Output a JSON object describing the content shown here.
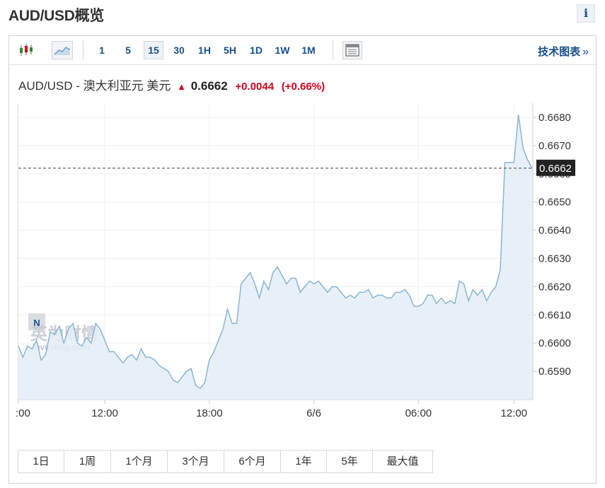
{
  "page": {
    "title": "AUD/USD概览",
    "info_label": "i"
  },
  "toolbar": {
    "icons": [
      "candlestick-icon",
      "area-chart-icon"
    ],
    "intervals": [
      "1",
      "5",
      "15",
      "30",
      "1H",
      "5H",
      "1D",
      "1W",
      "1M"
    ],
    "active_interval": "15",
    "layout_icon": "table-view-icon",
    "tech_chart_label": "技术图表",
    "tech_chart_arrow": "»"
  },
  "quote": {
    "pair": "AUD/USD - 澳大利亚元 美元",
    "direction_icon": "arrow-up-icon",
    "price": "0.6662",
    "change": "+0.0044",
    "change_pct": "(+0.66%)",
    "colors": {
      "up": "#d0021b"
    }
  },
  "watermark": {
    "badge": "N",
    "brand": "英为财情",
    "sub": "Investing.com"
  },
  "chart_data": {
    "type": "area",
    "x_ticks": [
      ":00",
      "12:00",
      "18:00",
      "6/6",
      "06:00",
      "12:00"
    ],
    "y_ticks": [
      "0.6590",
      "0.6600",
      "0.6610",
      "0.6620",
      "0.6630",
      "0.6640",
      "0.6650",
      "0.6660",
      "0.6670",
      "0.6680"
    ],
    "ylim": [
      0.658,
      0.6685
    ],
    "current_value": 0.6662,
    "current_label": "0.6662",
    "series_color": "#8cb4d4",
    "fill_color": "#e3edf5",
    "values": [
      0.6599,
      0.6595,
      0.6599,
      0.6598,
      0.6601,
      0.6594,
      0.6596,
      0.6604,
      0.6603,
      0.6606,
      0.66,
      0.6605,
      0.6607,
      0.66,
      0.6599,
      0.6602,
      0.66,
      0.6607,
      0.6605,
      0.6601,
      0.6597,
      0.6597,
      0.6595,
      0.6593,
      0.6595,
      0.6596,
      0.6594,
      0.6598,
      0.6595,
      0.6595,
      0.6594,
      0.6592,
      0.6591,
      0.659,
      0.6587,
      0.6586,
      0.6588,
      0.659,
      0.6591,
      0.6585,
      0.6584,
      0.6586,
      0.6594,
      0.6597,
      0.6601,
      0.6605,
      0.6612,
      0.6607,
      0.6607,
      0.6621,
      0.6623,
      0.6625,
      0.6621,
      0.6616,
      0.6622,
      0.6619,
      0.6625,
      0.6627,
      0.6624,
      0.6621,
      0.6623,
      0.6623,
      0.6618,
      0.662,
      0.6622,
      0.6621,
      0.6622,
      0.662,
      0.6618,
      0.662,
      0.662,
      0.6618,
      0.6616,
      0.6617,
      0.6616,
      0.6618,
      0.6618,
      0.6619,
      0.6616,
      0.6617,
      0.6617,
      0.6616,
      0.6616,
      0.6618,
      0.6618,
      0.6619,
      0.6617,
      0.6613,
      0.6613,
      0.6614,
      0.6617,
      0.6617,
      0.6614,
      0.6616,
      0.6614,
      0.6615,
      0.6614,
      0.6622,
      0.6621,
      0.6615,
      0.6619,
      0.6617,
      0.6619,
      0.6615,
      0.6618,
      0.662,
      0.6626,
      0.6664,
      0.6664,
      0.6664,
      0.6681,
      0.6669,
      0.6665,
      0.6662
    ]
  },
  "ranges": [
    "1日",
    "1周",
    "1个月",
    "3个月",
    "6个月",
    "1年",
    "5年",
    "最大值"
  ]
}
